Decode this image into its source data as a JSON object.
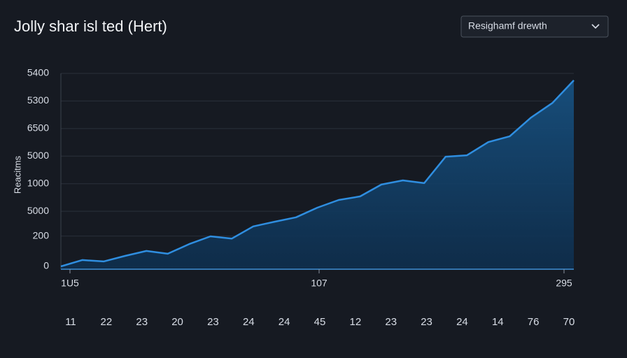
{
  "chart_data": {
    "type": "area",
    "title": "Jolly shar isl ted (Hert)",
    "dropdown": "Resighamf drewth",
    "ylabel": "Reacitms",
    "color": "#2f8ee0",
    "values": [
      0,
      0.23,
      0.18,
      0.38,
      0.56,
      0.46,
      0.81,
      1.09,
      1.01,
      1.45,
      1.62,
      1.78,
      2.13,
      2.41,
      2.54,
      2.97,
      3.12,
      3.02,
      3.98,
      4.03,
      4.51,
      4.72,
      5.4,
      5.93,
      6.75
    ],
    "ylim": [
      0,
      7
    ],
    "yticks": [
      0,
      {
        "value": 1.1,
        "label": "200"
      },
      {
        "value": 2,
        "label": "5000"
      },
      {
        "value": 3,
        "label": "1000"
      },
      {
        "value": 4,
        "label": "5000"
      },
      {
        "value": 5,
        "label": "6500"
      },
      {
        "value": 6,
        "label": "5300"
      },
      {
        "value": 7,
        "label": "5400"
      }
    ],
    "x_labels_top": [
      "1U5",
      107,
      295
    ],
    "x_labels_bottom": [
      11,
      22,
      23,
      20,
      23,
      24,
      24,
      45,
      12,
      23,
      23,
      24,
      14,
      76,
      70
    ],
    "grid": true
  }
}
